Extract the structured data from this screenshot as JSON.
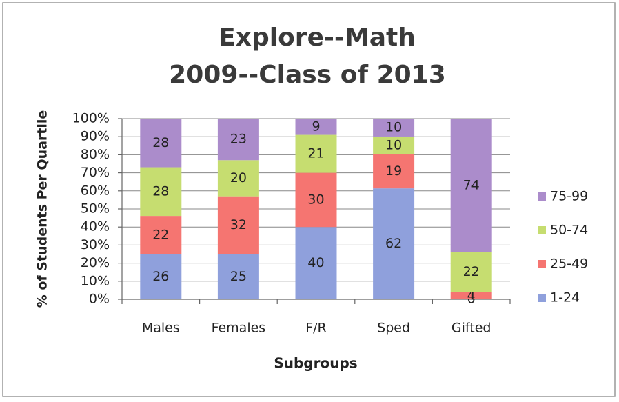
{
  "chart_data": {
    "type": "bar",
    "stacking": "percent",
    "title": [
      "Explore--Math",
      "2009--Class of 2013"
    ],
    "x_label": "Subgroups",
    "y_label": "% of Students Per Quartile",
    "categories": [
      "Males",
      "Females",
      "F/R",
      "Sped",
      "Gifted"
    ],
    "series": [
      {
        "name": "1-24",
        "color": "#8fa0dc",
        "values": [
          26,
          25,
          40,
          62,
          0
        ]
      },
      {
        "name": "25-49",
        "color": "#f57571",
        "values": [
          22,
          32,
          30,
          19,
          4
        ]
      },
      {
        "name": "50-74",
        "color": "#c6dd70",
        "values": [
          28,
          20,
          21,
          10,
          22
        ]
      },
      {
        "name": "75-99",
        "color": "#ab8ccb",
        "values": [
          28,
          23,
          9,
          10,
          74
        ]
      }
    ],
    "ylim": [
      0,
      100
    ],
    "yticks": [
      {
        "value": 0,
        "label": "0%"
      },
      {
        "value": 10,
        "label": "10%"
      },
      {
        "value": 20,
        "label": "20%"
      },
      {
        "value": 30,
        "label": "30%"
      },
      {
        "value": 40,
        "label": "40%"
      },
      {
        "value": 50,
        "label": "50%"
      },
      {
        "value": 60,
        "label": "60%"
      },
      {
        "value": 70,
        "label": "70%"
      },
      {
        "value": 80,
        "label": "80%"
      },
      {
        "value": 90,
        "label": "90%"
      },
      {
        "value": 100,
        "label": "100%"
      }
    ],
    "grid": true,
    "legend": "right"
  }
}
